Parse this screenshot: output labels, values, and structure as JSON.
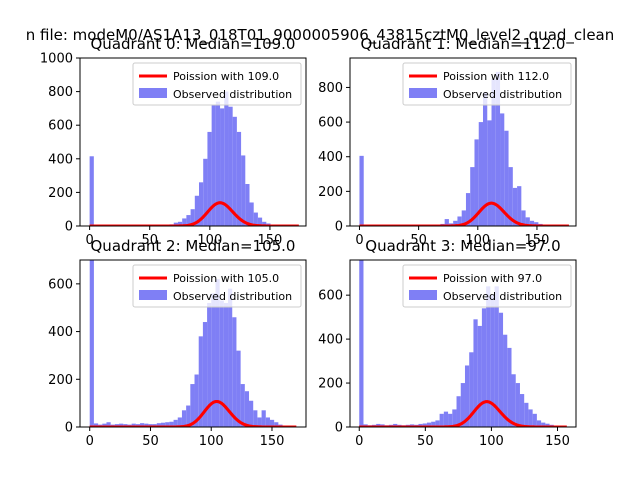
{
  "figure": {
    "suptitle": "n file: modeM0/AS1A13_018T01_9000005906_43815cztM0_level2_quad_clean"
  },
  "chart_data": [
    {
      "type": "bar",
      "title": "Quadrant 0: Median=109.0",
      "median": 109.0,
      "xlim": [
        -8,
        180
      ],
      "ylim": [
        0,
        1000
      ],
      "xticks": [
        0,
        50,
        100,
        150
      ],
      "yticks": [
        0,
        200,
        400,
        600,
        800,
        1000
      ],
      "legend": {
        "position": "upper right",
        "entries": [
          "Poission with 109.0",
          "Observed distribution"
        ]
      },
      "series": [
        {
          "name": "Observed distribution",
          "kind": "histogram",
          "color": "#7f7ff5",
          "bin_width": 3.5,
          "bins": [
            [
              0,
              415
            ],
            [
              3.5,
              3
            ],
            [
              7,
              2
            ],
            [
              10.5,
              2
            ],
            [
              14,
              3
            ],
            [
              17.5,
              2
            ],
            [
              21,
              2
            ],
            [
              24.5,
              2
            ],
            [
              28,
              2
            ],
            [
              31.5,
              3
            ],
            [
              35,
              2
            ],
            [
              38.5,
              2
            ],
            [
              42,
              3
            ],
            [
              45.5,
              2
            ],
            [
              49,
              3
            ],
            [
              52.5,
              5
            ],
            [
              56,
              4
            ],
            [
              59.5,
              6
            ],
            [
              63,
              8
            ],
            [
              66.5,
              10
            ],
            [
              70,
              20
            ],
            [
              73.5,
              25
            ],
            [
              77,
              45
            ],
            [
              80.5,
              65
            ],
            [
              84,
              100
            ],
            [
              87.5,
              180
            ],
            [
              91,
              260
            ],
            [
              94.5,
              400
            ],
            [
              98,
              560
            ],
            [
              101.5,
              720
            ],
            [
              105,
              740
            ],
            [
              108.5,
              700
            ],
            [
              112,
              800
            ],
            [
              115.5,
              710
            ],
            [
              119,
              650
            ],
            [
              122.5,
              560
            ],
            [
              126,
              420
            ],
            [
              129.5,
              250
            ],
            [
              133,
              140
            ],
            [
              136.5,
              80
            ],
            [
              140,
              50
            ],
            [
              143.5,
              25
            ],
            [
              147,
              15
            ],
            [
              150.5,
              8
            ],
            [
              154,
              5
            ],
            [
              157.5,
              3
            ],
            [
              161,
              2
            ],
            [
              164.5,
              2
            ],
            [
              168,
              1
            ],
            [
              171.5,
              1
            ]
          ]
        },
        {
          "name": "Poission with 109.0",
          "kind": "line",
          "color": "#ff0000",
          "lambda": 109.0,
          "scale": 3620,
          "x_range": [
            0,
            174
          ]
        }
      ]
    },
    {
      "type": "bar",
      "title": "Quadrant 1: Median=112.0",
      "median": 112.0,
      "xlim": [
        -8,
        183
      ],
      "ylim": [
        0,
        970
      ],
      "xticks": [
        0,
        50,
        100,
        150
      ],
      "yticks": [
        0,
        200,
        400,
        600,
        800
      ],
      "legend": {
        "position": "upper right",
        "entries": [
          "Poission with 112.0",
          "Observed distribution"
        ]
      },
      "series": [
        {
          "name": "Observed distribution",
          "kind": "histogram",
          "color": "#7f7ff5",
          "bin_width": 3.6,
          "bins": [
            [
              0,
              405
            ],
            [
              3.6,
              3
            ],
            [
              7.2,
              2
            ],
            [
              10.8,
              2
            ],
            [
              14.4,
              2
            ],
            [
              18,
              3
            ],
            [
              21.6,
              2
            ],
            [
              25.2,
              2
            ],
            [
              28.8,
              3
            ],
            [
              32.4,
              2
            ],
            [
              36,
              2
            ],
            [
              39.6,
              3
            ],
            [
              43.2,
              3
            ],
            [
              46.8,
              3
            ],
            [
              50.4,
              4
            ],
            [
              54,
              3
            ],
            [
              57.6,
              5
            ],
            [
              61.2,
              6
            ],
            [
              64.8,
              8
            ],
            [
              68.4,
              12
            ],
            [
              72,
              40
            ],
            [
              75.6,
              15
            ],
            [
              79.2,
              30
            ],
            [
              82.8,
              55
            ],
            [
              86.4,
              90
            ],
            [
              90,
              190
            ],
            [
              93.6,
              340
            ],
            [
              97.2,
              500
            ],
            [
              100.8,
              600
            ],
            [
              104.4,
              770
            ],
            [
              108,
              610
            ],
            [
              111.6,
              850
            ],
            [
              115.2,
              890
            ],
            [
              118.8,
              650
            ],
            [
              122.4,
              550
            ],
            [
              126,
              340
            ],
            [
              129.6,
              220
            ],
            [
              133.2,
              230
            ],
            [
              136.8,
              90
            ],
            [
              140.4,
              50
            ],
            [
              144,
              30
            ],
            [
              147.6,
              22
            ],
            [
              151.2,
              12
            ],
            [
              154.8,
              6
            ],
            [
              158.4,
              4
            ],
            [
              162,
              2
            ],
            [
              165.6,
              2
            ],
            [
              169.2,
              1
            ],
            [
              172.8,
              1
            ]
          ]
        },
        {
          "name": "Poission with 112.0",
          "kind": "line",
          "color": "#ff0000",
          "lambda": 112.0,
          "scale": 3500,
          "x_range": [
            0,
            177
          ]
        }
      ]
    },
    {
      "type": "bar",
      "title": "Quadrant 2: Median=105.0",
      "median": 105.0,
      "xlim": [
        -8,
        178
      ],
      "ylim": [
        0,
        700
      ],
      "xticks": [
        0,
        50,
        100,
        150
      ],
      "yticks": [
        0,
        200,
        400,
        600
      ],
      "legend": {
        "position": "upper right",
        "entries": [
          "Poission with 105.0",
          "Observed distribution"
        ]
      },
      "series": [
        {
          "name": "Observed distribution",
          "kind": "histogram",
          "color": "#7f7ff5",
          "bin_width": 3.45,
          "bins": [
            [
              0,
              700
            ],
            [
              3.45,
              15
            ],
            [
              6.9,
              10
            ],
            [
              10.35,
              14
            ],
            [
              13.8,
              20
            ],
            [
              17.25,
              10
            ],
            [
              20.7,
              12
            ],
            [
              24.15,
              14
            ],
            [
              27.6,
              12
            ],
            [
              31.05,
              10
            ],
            [
              34.5,
              14
            ],
            [
              37.95,
              12
            ],
            [
              41.4,
              16
            ],
            [
              44.85,
              14
            ],
            [
              48.3,
              12
            ],
            [
              51.75,
              12
            ],
            [
              55.2,
              16
            ],
            [
              58.65,
              18
            ],
            [
              62.1,
              20
            ],
            [
              65.55,
              22
            ],
            [
              69,
              30
            ],
            [
              72.45,
              40
            ],
            [
              75.9,
              70
            ],
            [
              79.35,
              90
            ],
            [
              82.8,
              180
            ],
            [
              86.25,
              220
            ],
            [
              89.7,
              380
            ],
            [
              93.15,
              440
            ],
            [
              96.6,
              520
            ],
            [
              100.05,
              560
            ],
            [
              103.5,
              620
            ],
            [
              106.95,
              530
            ],
            [
              110.4,
              520
            ],
            [
              113.85,
              580
            ],
            [
              117.3,
              460
            ],
            [
              120.75,
              320
            ],
            [
              124.2,
              180
            ],
            [
              127.65,
              150
            ],
            [
              131.1,
              110
            ],
            [
              134.55,
              70
            ],
            [
              138,
              40
            ],
            [
              141.45,
              70
            ],
            [
              144.9,
              40
            ],
            [
              148.35,
              30
            ],
            [
              151.8,
              20
            ],
            [
              155.25,
              10
            ],
            [
              158.7,
              5
            ],
            [
              162.15,
              3
            ],
            [
              165.6,
              2
            ]
          ]
        },
        {
          "name": "Poission with 105.0",
          "kind": "line",
          "color": "#ff0000",
          "lambda": 105.0,
          "scale": 2750,
          "x_range": [
            0,
            170
          ]
        }
      ]
    },
    {
      "type": "bar",
      "title": "Quadrant 3: Median=97.0",
      "median": 97.0,
      "xlim": [
        -7,
        164
      ],
      "ylim": [
        0,
        760
      ],
      "xticks": [
        0,
        50,
        100,
        150
      ],
      "yticks": [
        0,
        200,
        400,
        600
      ],
      "legend": {
        "position": "upper right",
        "entries": [
          "Poission with 97.0",
          "Observed distribution"
        ]
      },
      "series": [
        {
          "name": "Observed distribution",
          "kind": "histogram",
          "color": "#7f7ff5",
          "bin_width": 3.2,
          "bins": [
            [
              0,
              760
            ],
            [
              3.2,
              12
            ],
            [
              6.4,
              8
            ],
            [
              9.6,
              10
            ],
            [
              12.8,
              14
            ],
            [
              16,
              12
            ],
            [
              19.2,
              8
            ],
            [
              22.4,
              10
            ],
            [
              25.6,
              14
            ],
            [
              28.8,
              10
            ],
            [
              32,
              8
            ],
            [
              35.2,
              10
            ],
            [
              38.4,
              12
            ],
            [
              41.6,
              10
            ],
            [
              44.8,
              14
            ],
            [
              48,
              16
            ],
            [
              51.2,
              20
            ],
            [
              54.4,
              24
            ],
            [
              57.6,
              30
            ],
            [
              60.8,
              60
            ],
            [
              64,
              70
            ],
            [
              67.2,
              60
            ],
            [
              70.4,
              80
            ],
            [
              73.6,
              140
            ],
            [
              76.8,
              200
            ],
            [
              80,
              280
            ],
            [
              83.2,
              340
            ],
            [
              86.4,
              490
            ],
            [
              89.6,
              460
            ],
            [
              92.8,
              540
            ],
            [
              96,
              640
            ],
            [
              99.2,
              600
            ],
            [
              102.4,
              640
            ],
            [
              105.6,
              520
            ],
            [
              108.8,
              420
            ],
            [
              112,
              360
            ],
            [
              115.2,
              240
            ],
            [
              118.4,
              200
            ],
            [
              121.6,
              150
            ],
            [
              124.8,
              110
            ],
            [
              128,
              80
            ],
            [
              131.2,
              60
            ],
            [
              134.4,
              30
            ],
            [
              137.6,
              20
            ],
            [
              140.8,
              15
            ],
            [
              144,
              10
            ],
            [
              147.2,
              6
            ],
            [
              150.4,
              3
            ],
            [
              153.6,
              2
            ]
          ]
        },
        {
          "name": "Poission with 97.0",
          "kind": "line",
          "color": "#ff0000",
          "lambda": 97.0,
          "scale": 2850,
          "x_range": [
            0,
            157
          ]
        }
      ]
    }
  ]
}
